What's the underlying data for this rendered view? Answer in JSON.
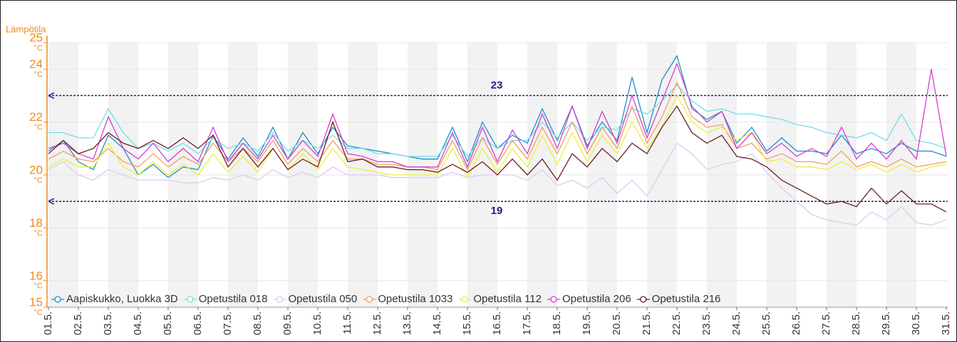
{
  "chart_data": {
    "type": "line",
    "y_label": "Lämpötila",
    "y_unit": "°C",
    "xlim": [
      1,
      31
    ],
    "ylim": [
      15,
      25
    ],
    "yticks": [
      15,
      16,
      18,
      20,
      22,
      24,
      25
    ],
    "xticks": [
      {
        "value": 1,
        "label": "01.5."
      },
      {
        "value": 2,
        "label": "02.5."
      },
      {
        "value": 3,
        "label": "03.5."
      },
      {
        "value": 4,
        "label": "04.5."
      },
      {
        "value": 5,
        "label": "05.5."
      },
      {
        "value": 6,
        "label": "06.5."
      },
      {
        "value": 7,
        "label": "07.5."
      },
      {
        "value": 8,
        "label": "08.5."
      },
      {
        "value": 9,
        "label": "09.5."
      },
      {
        "value": 10,
        "label": "10.5."
      },
      {
        "value": 11,
        "label": "11.5."
      },
      {
        "value": 12,
        "label": "12.5."
      },
      {
        "value": 13,
        "label": "13.5."
      },
      {
        "value": 14,
        "label": "14.5."
      },
      {
        "value": 15,
        "label": "15.5."
      },
      {
        "value": 16,
        "label": "16.5."
      },
      {
        "value": 17,
        "label": "17.5."
      },
      {
        "value": 18,
        "label": "18.5."
      },
      {
        "value": 19,
        "label": "19.5."
      },
      {
        "value": 20,
        "label": "20.5."
      },
      {
        "value": 21,
        "label": "21.5."
      },
      {
        "value": 22,
        "label": "22.5."
      },
      {
        "value": 23,
        "label": "23.5."
      },
      {
        "value": 24,
        "label": "24.5."
      },
      {
        "value": 25,
        "label": "25.5."
      },
      {
        "value": 26,
        "label": "26.5."
      },
      {
        "value": 27,
        "label": "27.5."
      },
      {
        "value": 28,
        "label": "28.5."
      },
      {
        "value": 29,
        "label": "29.5."
      },
      {
        "value": 30,
        "label": "30.5."
      },
      {
        "value": 31,
        "label": "31.5."
      }
    ],
    "reference_lines": [
      {
        "value": 23,
        "color": "#1a237e"
      },
      {
        "value": 19,
        "color": "#1a237e"
      }
    ],
    "x": [
      1,
      1.5,
      2,
      2.5,
      3,
      3.5,
      4,
      4.5,
      5,
      5.5,
      6,
      6.5,
      7,
      7.5,
      8,
      8.5,
      9,
      9.5,
      10,
      10.5,
      11,
      11.5,
      12,
      12.5,
      13,
      13.5,
      14,
      14.5,
      15,
      15.5,
      16,
      16.5,
      17,
      17.5,
      18,
      18.5,
      19,
      19.5,
      20,
      20.5,
      21,
      21.5,
      22,
      22.5,
      23,
      23.5,
      24,
      24.5,
      25,
      25.5,
      26,
      26.5,
      27,
      27.5,
      28,
      28.5,
      29,
      29.5,
      30,
      30.5,
      31
    ],
    "series": [
      {
        "name": "Aapiskukko, Luokka 3D",
        "color": "#1f8fc4",
        "values": [
          20.9,
          21.3,
          20.5,
          20.2,
          21.5,
          21.0,
          20.0,
          20.4,
          19.9,
          20.3,
          20.2,
          21.5,
          20.6,
          21.4,
          20.7,
          21.8,
          20.6,
          21.6,
          20.8,
          21.8,
          21.1,
          21.0,
          20.9,
          20.8,
          20.7,
          20.6,
          20.6,
          21.8,
          20.5,
          22.0,
          21.0,
          21.5,
          21.2,
          22.5,
          21.3,
          22.6,
          21.1,
          22.0,
          21.3,
          23.7,
          21.6,
          23.6,
          24.5,
          22.5,
          22.1,
          22.4,
          21.2,
          21.8,
          20.9,
          21.4,
          20.9,
          20.9,
          20.8,
          21.5,
          20.8,
          21.0,
          20.8,
          21.2,
          20.9,
          20.9,
          20.7
        ]
      },
      {
        "name": "Opetustila 018",
        "color": "#6fe0e8",
        "values": [
          21.6,
          21.6,
          21.4,
          21.4,
          22.5,
          21.6,
          21.0,
          21.2,
          20.9,
          21.2,
          20.8,
          21.4,
          21.0,
          21.2,
          20.9,
          21.6,
          20.9,
          21.3,
          21.0,
          21.5,
          21.0,
          21.0,
          20.8,
          20.8,
          20.7,
          20.7,
          20.7,
          21.5,
          20.7,
          21.4,
          21.0,
          21.3,
          21.3,
          22.0,
          21.4,
          22.0,
          21.3,
          21.8,
          21.7,
          22.5,
          22.3,
          22.8,
          23.4,
          22.8,
          22.4,
          22.5,
          22.3,
          22.3,
          22.2,
          22.1,
          21.9,
          21.8,
          21.6,
          21.5,
          21.4,
          21.6,
          21.3,
          22.3,
          21.3,
          21.2,
          21.0
        ]
      },
      {
        "name": "Opetustila 050",
        "color": "#e2c9f2",
        "values": [
          20.2,
          20.5,
          20.0,
          19.8,
          20.2,
          20.0,
          19.8,
          19.8,
          19.8,
          19.7,
          19.7,
          19.9,
          19.8,
          20.0,
          19.8,
          20.2,
          19.9,
          20.1,
          19.9,
          20.3,
          20.0,
          20.0,
          20.0,
          19.9,
          19.9,
          19.9,
          19.9,
          20.1,
          19.9,
          20.0,
          20.0,
          20.0,
          19.8,
          20.2,
          19.6,
          19.8,
          19.5,
          19.9,
          19.3,
          19.8,
          19.2,
          20.2,
          21.2,
          20.8,
          20.2,
          20.4,
          20.5,
          20.8,
          20.1,
          19.5,
          19.0,
          18.5,
          18.3,
          18.2,
          18.1,
          18.6,
          18.3,
          18.8,
          18.2,
          18.1,
          18.3
        ]
      },
      {
        "name": "Opetustila 1033",
        "color": "#f0a060",
        "values": [
          20.6,
          20.9,
          20.6,
          20.5,
          21.0,
          20.5,
          20.3,
          20.8,
          20.3,
          20.7,
          20.4,
          21.2,
          20.5,
          21.0,
          20.5,
          21.3,
          20.4,
          21.0,
          20.5,
          21.3,
          20.6,
          20.6,
          20.4,
          20.4,
          20.3,
          20.3,
          20.2,
          21.3,
          20.2,
          21.4,
          20.4,
          21.3,
          20.6,
          21.8,
          20.8,
          22.0,
          20.8,
          21.8,
          21.0,
          22.6,
          21.2,
          22.2,
          23.5,
          22.2,
          21.8,
          21.9,
          21.0,
          21.2,
          20.6,
          20.8,
          20.5,
          20.5,
          20.4,
          20.9,
          20.3,
          20.5,
          20.3,
          20.6,
          20.3,
          20.4,
          20.5
        ]
      },
      {
        "name": "Opetustila 112",
        "color": "#eeee3a",
        "values": [
          20.3,
          20.6,
          20.3,
          20.3,
          21.2,
          20.3,
          20.0,
          20.5,
          20.0,
          20.4,
          20.0,
          20.8,
          20.1,
          20.7,
          20.1,
          21.0,
          20.2,
          20.8,
          20.2,
          21.0,
          20.3,
          20.2,
          20.1,
          20.0,
          20.0,
          20.0,
          20.0,
          21.0,
          19.9,
          21.0,
          20.1,
          21.0,
          20.3,
          21.5,
          20.4,
          21.6,
          20.5,
          21.5,
          20.8,
          22.0,
          21.0,
          21.8,
          23.0,
          22.0,
          21.6,
          21.8,
          21.3,
          21.6,
          20.5,
          20.6,
          20.3,
          20.3,
          20.2,
          20.5,
          20.2,
          20.4,
          20.1,
          20.4,
          20.1,
          20.3,
          20.4
        ]
      },
      {
        "name": "Opetustila 206",
        "color": "#d040d0",
        "values": [
          21.0,
          21.2,
          20.8,
          20.6,
          22.2,
          21.0,
          20.6,
          21.2,
          20.5,
          21.0,
          20.5,
          21.8,
          20.5,
          21.2,
          20.6,
          21.5,
          20.6,
          21.3,
          20.7,
          22.3,
          20.8,
          20.7,
          20.5,
          20.5,
          20.3,
          20.3,
          20.3,
          21.6,
          20.3,
          21.8,
          20.5,
          21.7,
          20.8,
          22.3,
          21.0,
          22.6,
          21.0,
          22.4,
          21.2,
          23.0,
          21.4,
          22.8,
          24.2,
          22.6,
          22.0,
          22.4,
          21.0,
          21.6,
          20.8,
          21.2,
          20.7,
          21.0,
          20.7,
          21.8,
          20.6,
          21.2,
          20.6,
          21.3,
          20.6,
          24.0,
          20.7
        ]
      },
      {
        "name": "Opetustila 216",
        "color": "#6b2020",
        "values": [
          20.8,
          21.3,
          20.8,
          21.0,
          21.6,
          21.2,
          21.0,
          21.3,
          21.0,
          21.4,
          21.0,
          21.5,
          20.3,
          21.0,
          20.3,
          21.0,
          20.2,
          20.6,
          20.3,
          22.0,
          20.5,
          20.6,
          20.3,
          20.3,
          20.2,
          20.2,
          20.1,
          20.4,
          20.1,
          20.5,
          20.0,
          20.6,
          20.0,
          20.6,
          19.8,
          20.8,
          20.3,
          21.0,
          20.5,
          21.2,
          20.8,
          21.8,
          22.6,
          21.6,
          21.2,
          21.5,
          20.7,
          20.6,
          20.3,
          19.8,
          19.5,
          19.2,
          18.9,
          19.0,
          18.8,
          19.5,
          18.9,
          19.4,
          18.9,
          18.9,
          18.6
        ]
      }
    ]
  }
}
